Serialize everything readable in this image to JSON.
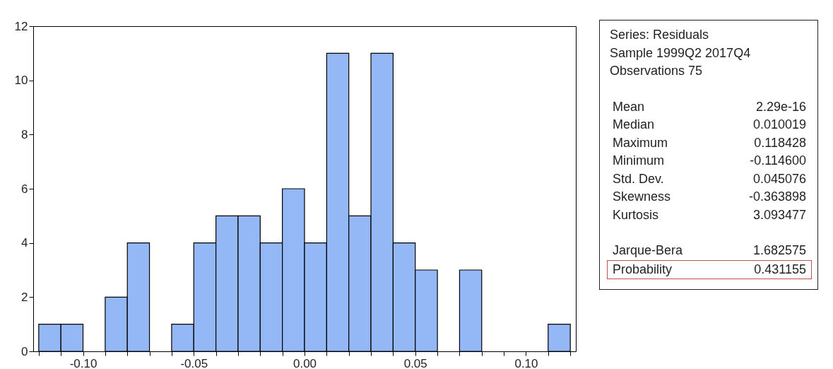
{
  "chart_data": {
    "type": "histogram",
    "bins": [
      -0.12,
      -0.11,
      -0.1,
      -0.09,
      -0.08,
      -0.07,
      -0.06,
      -0.05,
      -0.04,
      -0.03,
      -0.02,
      -0.01,
      0,
      0.01,
      0.02,
      0.03,
      0.04,
      0.05,
      0.06,
      0.07,
      0.08,
      0.09,
      0.1,
      0.11,
      0.12
    ],
    "values": [
      1,
      1,
      0,
      2,
      4,
      0,
      1,
      4,
      5,
      5,
      4,
      6,
      4,
      11,
      5,
      11,
      4,
      3,
      0,
      3,
      0,
      0,
      0,
      1
    ],
    "color": "#94b8f5",
    "xlim": [
      -0.1225,
      0.1225
    ],
    "xticks": [
      {
        "value": -0.12,
        "label": null
      },
      {
        "value": -0.11,
        "label": null
      },
      {
        "value": -0.1,
        "label": "-0.10"
      },
      {
        "value": -0.09,
        "label": null
      },
      {
        "value": -0.08,
        "label": null
      },
      {
        "value": -0.07,
        "label": null
      },
      {
        "value": -0.06,
        "label": null
      },
      {
        "value": -0.05,
        "label": "-0.05"
      },
      {
        "value": -0.04,
        "label": null
      },
      {
        "value": -0.03,
        "label": null
      },
      {
        "value": -0.02,
        "label": null
      },
      {
        "value": -0.01,
        "label": null
      },
      {
        "value": 0,
        "label": "0.00"
      },
      {
        "value": 0.01,
        "label": null
      },
      {
        "value": 0.02,
        "label": null
      },
      {
        "value": 0.03,
        "label": null
      },
      {
        "value": 0.04,
        "label": null
      },
      {
        "value": 0.05,
        "label": "0.05"
      },
      {
        "value": 0.06,
        "label": null
      },
      {
        "value": 0.07,
        "label": null
      },
      {
        "value": 0.08,
        "label": null
      },
      {
        "value": 0.09,
        "label": null
      },
      {
        "value": 0.1,
        "label": "0.10"
      },
      {
        "value": 0.11,
        "label": null
      },
      {
        "value": 0.12,
        "label": null
      }
    ],
    "ylim": [
      0,
      12
    ],
    "yticks": [
      0,
      2,
      4,
      6,
      8,
      10,
      12
    ],
    "grid": false,
    "annotations": [
      "Series: Residuals",
      "Sample 1999Q2 2017Q4",
      "Observations 75",
      "Mean",
      "2.29e-16",
      "Median",
      "0.010019",
      "Maximum",
      "0.118428",
      "Minimum",
      "-0.114600",
      "Std. Dev.",
      "0.045076",
      "Skewness",
      "-0.363898",
      "Kurtosis",
      "3.093477",
      "Jarque-Bera",
      "1.682575",
      "Probability",
      "0.431155"
    ]
  }
}
